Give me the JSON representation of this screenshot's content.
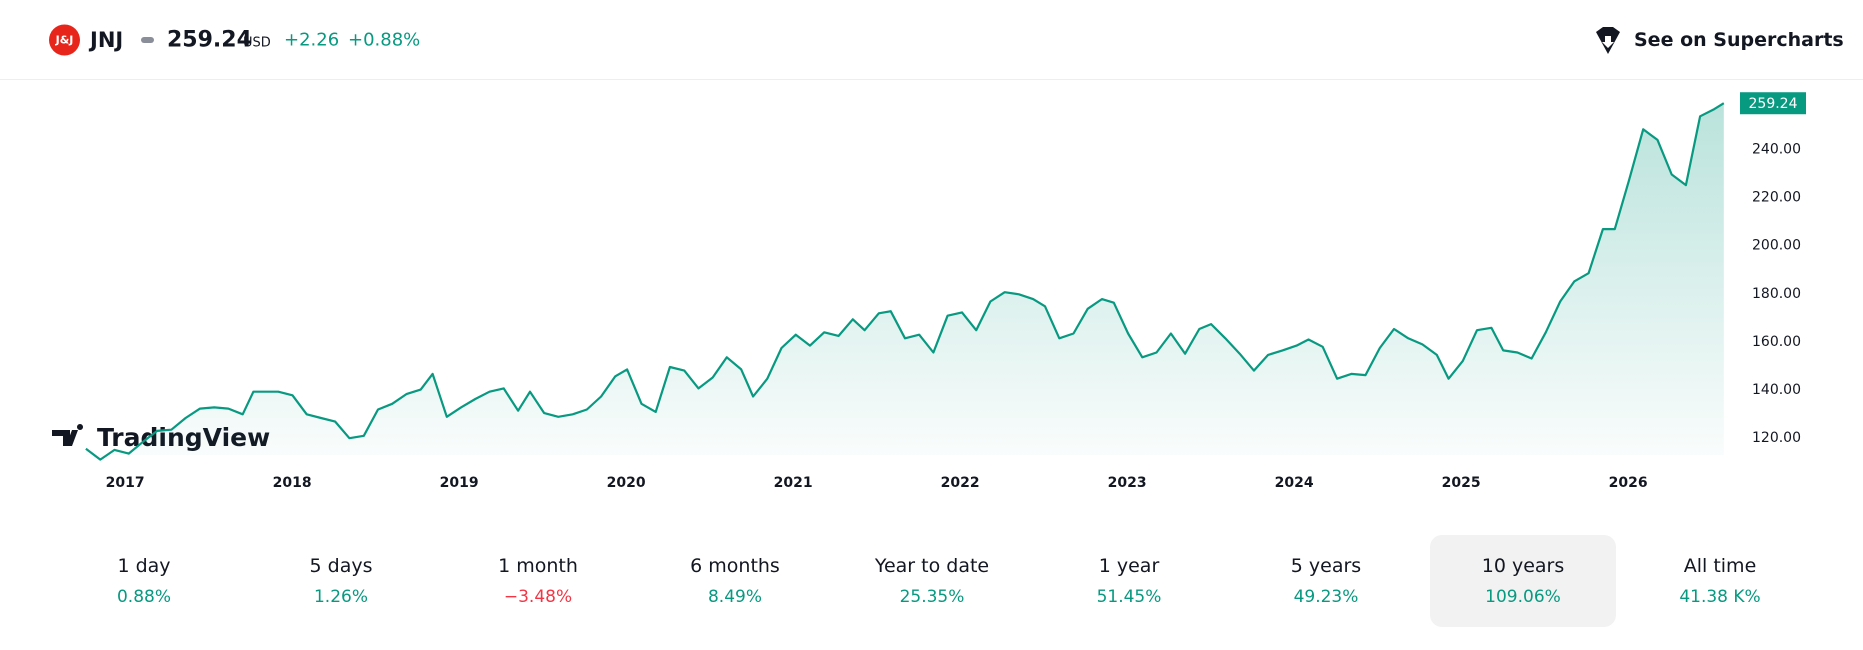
{
  "header": {
    "logo_text": "J&J",
    "ticker": "JNJ",
    "price": "259.24",
    "currency": "USD",
    "change": "+2.26",
    "change_percent": "+0.88%",
    "supercharts": "See on Supercharts"
  },
  "watermark": "TradingView",
  "chart_data": {
    "type": "line",
    "color": "#089981",
    "grid": false,
    "x": [
      2016.765,
      2016.851,
      2016.936,
      2017.021,
      2017.107,
      2017.192,
      2017.277,
      2017.362,
      2017.448,
      2017.533,
      2017.618,
      2017.704,
      2017.768,
      2017.917,
      2018.002,
      2018.087,
      2018.173,
      2018.258,
      2018.343,
      2018.429,
      2018.514,
      2018.599,
      2018.684,
      2018.77,
      2018.841,
      2018.926,
      2019.011,
      2019.097,
      2019.182,
      2019.267,
      2019.353,
      2019.424,
      2019.509,
      2019.594,
      2019.68,
      2019.765,
      2019.85,
      2019.935,
      2020.006,
      2020.092,
      2020.177,
      2020.262,
      2020.348,
      2020.433,
      2020.518,
      2020.603,
      2020.689,
      2020.76,
      2020.845,
      2020.93,
      2021.016,
      2021.101,
      2021.186,
      2021.272,
      2021.357,
      2021.428,
      2021.513,
      2021.584,
      2021.67,
      2021.755,
      2021.84,
      2021.925,
      2022.011,
      2022.096,
      2022.181,
      2022.267,
      2022.352,
      2022.437,
      2022.508,
      2022.594,
      2022.679,
      2022.764,
      2022.849,
      2022.92,
      2023.006,
      2023.091,
      2023.176,
      2023.262,
      2023.347,
      2023.432,
      2023.503,
      2023.588,
      2023.674,
      2023.759,
      2023.844,
      2023.93,
      2024.015,
      2024.086,
      2024.171,
      2024.257,
      2024.342,
      2024.427,
      2024.513,
      2024.598,
      2024.683,
      2024.768,
      2024.854,
      2024.925,
      2025.01,
      2025.095,
      2025.181,
      2025.252,
      2025.337,
      2025.422,
      2025.507,
      2025.593,
      2025.678,
      2025.763,
      2025.849,
      2025.92,
      2026.005,
      2026.09,
      2026.176,
      2026.261,
      2026.346,
      2026.431,
      2026.516,
      2026.573
    ],
    "values": [
      115.6,
      111.1,
      115.1,
      113.6,
      118.5,
      123.0,
      123.5,
      128.4,
      132.3,
      132.8,
      132.3,
      129.9,
      139.3,
      139.3,
      137.8,
      129.9,
      128.4,
      126.9,
      120.0,
      121.0,
      131.9,
      134.3,
      138.3,
      140.2,
      146.7,
      128.9,
      132.8,
      136.3,
      139.3,
      140.7,
      131.4,
      139.3,
      130.4,
      128.9,
      129.9,
      131.9,
      137.3,
      145.7,
      148.6,
      134.3,
      130.9,
      149.6,
      148.1,
      140.7,
      145.2,
      153.6,
      148.6,
      137.3,
      144.7,
      157.5,
      163.0,
      158.5,
      164.0,
      162.5,
      169.4,
      164.9,
      171.9,
      172.8,
      161.5,
      163.0,
      155.6,
      170.9,
      172.3,
      164.9,
      176.8,
      180.7,
      179.8,
      177.8,
      174.8,
      161.5,
      163.5,
      173.8,
      177.8,
      176.3,
      163.5,
      153.6,
      155.6,
      163.5,
      155.1,
      165.4,
      167.4,
      161.5,
      155.1,
      148.1,
      154.6,
      156.5,
      158.5,
      161.0,
      158.0,
      144.7,
      146.7,
      146.2,
      157.5,
      165.4,
      161.5,
      159.0,
      154.6,
      144.7,
      152.1,
      164.9,
      165.9,
      156.5,
      155.6,
      153.1,
      164.0,
      176.8,
      185.2,
      188.6,
      206.9,
      206.9,
      227.2,
      248.4,
      244.0,
      229.6,
      225.2,
      253.8,
      256.8,
      259.24
    ],
    "xlim": [
      2016.55,
      2026.58
    ],
    "xticks": [
      2017,
      2018,
      2019,
      2020,
      2021,
      2022,
      2023,
      2024,
      2025,
      2026
    ],
    "ylim": [
      113,
      261
    ],
    "yticks": [
      {
        "value": 120,
        "label": "120.00"
      },
      {
        "value": 140,
        "label": "140.00"
      },
      {
        "value": 160,
        "label": "160.00"
      },
      {
        "value": 180,
        "label": "180.00"
      },
      {
        "value": 200,
        "label": "200.00"
      },
      {
        "value": 220,
        "label": "220.00"
      },
      {
        "value": 240,
        "label": "240.00"
      }
    ]
  },
  "periods": [
    {
      "label": "1 day",
      "change": "0.88%",
      "color": "#089981"
    },
    {
      "label": "5 days",
      "change": "1.26%",
      "color": "#089981"
    },
    {
      "label": "1 month",
      "change": "−3.48%",
      "color": "#f23645"
    },
    {
      "label": "6 months",
      "change": "8.49%",
      "color": "#089981"
    },
    {
      "label": "Year to date",
      "change": "25.35%",
      "color": "#089981"
    },
    {
      "label": "1 year",
      "change": "51.45%",
      "color": "#089981"
    },
    {
      "label": "5 years",
      "change": "49.23%",
      "color": "#089981"
    },
    {
      "label": "10 years",
      "change": "109.06%",
      "color": "#089981",
      "selected": true
    },
    {
      "label": "All time",
      "change": "41.38 K%",
      "color": "#089981"
    }
  ]
}
